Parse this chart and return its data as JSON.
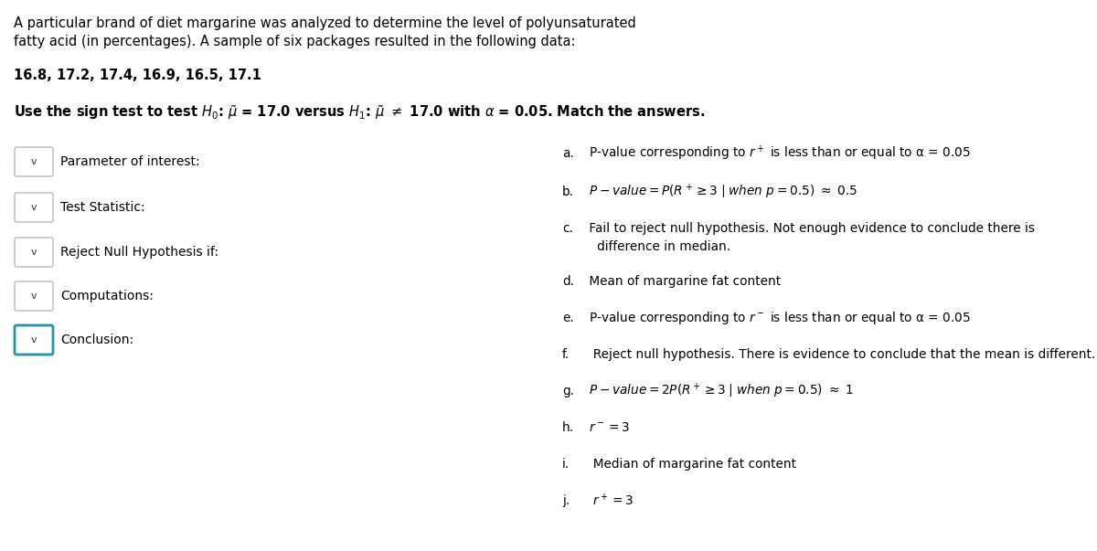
{
  "title_line1": "A particular brand of diet margarine was analyzed to determine the level of polyunsaturated",
  "title_line2": "fatty acid (in percentages). A sample of six packages resulted in the following data:",
  "data_line": "16.8, 17.2, 17.4, 16.9, 16.5, 17.1",
  "bg_color": "#ffffff",
  "text_color": "#000000",
  "box_edge_color": "#cccccc",
  "conclusion_box_color": "#2196a8",
  "left_labels": [
    "Parameter of interest:",
    "Test Statistic:",
    "Reject Null Hypothesis if:",
    "Computations:",
    "Conclusion:"
  ],
  "right_items": [
    {
      "label": "a.",
      "text": " P-value corresponding to $r^+$ is less than or equal to α = 0.05",
      "italic": false
    },
    {
      "label": "b.",
      "text": " $P - value = P(R^+\\geq 3\\mid when\\ p =0.5)\\ \\approx\\ 0.5$",
      "italic": true
    },
    {
      "label": "c.",
      "text": " Fail to reject null hypothesis. Not enough evidence to conclude there is",
      "italic": false
    },
    {
      "label": "",
      "text": "   difference in median.",
      "italic": false
    },
    {
      "label": "d.",
      "text": " Mean of margarine fat content",
      "italic": false
    },
    {
      "label": "e.",
      "text": " P-value corresponding to $r^-$ is less than or equal to α = 0.05",
      "italic": false
    },
    {
      "label": "f.",
      "text": "  Reject null hypothesis. There is evidence to conclude that the mean is different.",
      "italic": false
    },
    {
      "label": "g.",
      "text": " $P - value = 2P(R^+\\geq 3\\mid when\\ p =0.5)\\ \\approx\\ 1$",
      "italic": true
    },
    {
      "label": "h.",
      "text": " $r^- = 3$",
      "italic": true
    },
    {
      "label": "i.",
      "text": "  Median of margarine fat content",
      "italic": false
    },
    {
      "label": "j.",
      "text": "  $r^+ = 3$",
      "italic": true
    }
  ]
}
